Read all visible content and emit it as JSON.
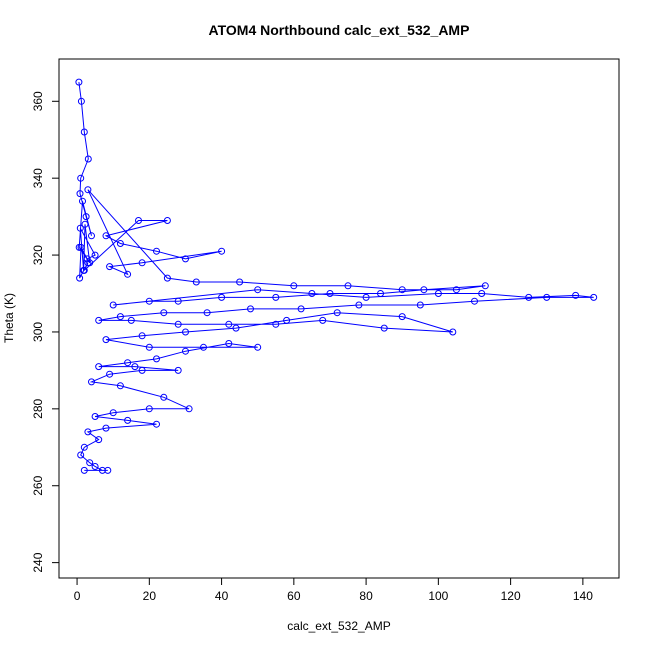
{
  "chart_data": {
    "type": "scatter",
    "title": "ATOM4 Northbound calc_ext_532_AMP",
    "xlabel": "calc_ext_532_AMP",
    "ylabel": "Theta (K)",
    "xlim": [
      -5,
      150
    ],
    "ylim": [
      236,
      371
    ],
    "x_ticks": [
      0,
      20,
      40,
      60,
      80,
      100,
      120,
      140
    ],
    "y_ticks": [
      240,
      260,
      280,
      300,
      320,
      340,
      360
    ],
    "grid": false,
    "legend": "none",
    "marker": "open-circle",
    "connected": true,
    "color": "#0000ff",
    "series": [
      {
        "x": [
          0.5,
          1.2,
          2.0,
          3.1,
          1.0,
          0.8,
          2.5,
          4.0,
          1.5,
          0.6,
          3.5,
          2.2,
          1.8,
          0.9,
          5.0,
          2.8,
          1.1,
          0.7,
          3.0,
          2.0,
          17.0,
          25.0,
          8.0,
          12.0,
          22.0,
          30.0,
          40.0,
          18.0,
          9.0,
          14.0,
          3.0,
          25.0,
          33.0,
          45.0,
          60.0,
          75.0,
          90.0,
          105.0,
          113.0,
          96.0,
          84.0,
          70.0,
          55.0,
          40.0,
          28.0,
          20.0,
          10.0,
          50.0,
          65.0,
          80.0,
          100.0,
          112.0,
          125.0,
          138.0,
          143.0,
          130.0,
          110.0,
          95.0,
          78.0,
          62.0,
          48.0,
          36.0,
          24.0,
          12.0,
          6.0,
          15.0,
          28.0,
          42.0,
          55.0,
          68.0,
          85.0,
          104.0,
          90.0,
          72.0,
          58.0,
          44.0,
          30.0,
          18.0,
          8.0,
          20.0,
          35.0,
          50.0,
          42.0,
          30.0,
          22.0,
          14.0,
          6.0,
          16.0,
          28.0,
          18.0,
          9.0,
          4.0,
          12.0,
          24.0,
          31.0,
          20.0,
          10.0,
          5.0,
          14.0,
          22.0,
          8.0,
          3.0,
          6.0,
          2.0,
          1.0,
          3.5,
          5.0,
          7.0,
          8.5,
          2.0
        ],
        "y": [
          365,
          360,
          352,
          345,
          340,
          336,
          330,
          325,
          334,
          322,
          318,
          328,
          316,
          327,
          320,
          319,
          322,
          314,
          318,
          316,
          329,
          329,
          325,
          323,
          321,
          319,
          321,
          318,
          317,
          315,
          337,
          314,
          313,
          313,
          312,
          312,
          311,
          311,
          312,
          311,
          310,
          310,
          309,
          309,
          308,
          308,
          307,
          311,
          310,
          309,
          310,
          310,
          309,
          309.5,
          309,
          309,
          308,
          307,
          307,
          306,
          306,
          305,
          305,
          304,
          303,
          303,
          302,
          302,
          302,
          303,
          301,
          300,
          304,
          305,
          303,
          301,
          300,
          299,
          298,
          296,
          296,
          296,
          297,
          295,
          293,
          292,
          291,
          291,
          290,
          290,
          289,
          287,
          286,
          283,
          280,
          280,
          279,
          278,
          277,
          276,
          275,
          274,
          272,
          270,
          268,
          266,
          265,
          264,
          264,
          264
        ]
      }
    ]
  }
}
